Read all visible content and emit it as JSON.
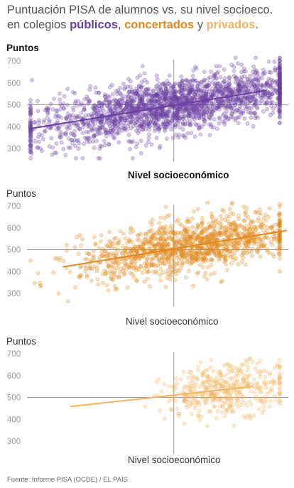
{
  "header": {
    "title_line1": "Puntuación PISA de alumnos vs. su nivel socioeco.",
    "title_line2_prefix": "en colegios ",
    "label_publicos": "públicos",
    "comma": ", ",
    "label_concertados": "concertados",
    "and": " y ",
    "label_privados": "privados",
    "period": "."
  },
  "source": "Fuente: Informe PISA (OCDE) / EL PAÍS",
  "colors": {
    "publicos": "#6b3fa0",
    "concertados": "#e08a1e",
    "privados": "#f2b45f"
  },
  "chart_data": [
    {
      "type": "scatter",
      "series": [
        {
          "name": "públicos",
          "color": "#6b3fa0",
          "n_points": 2200,
          "x_center": 0.0,
          "x_spread": 1.0,
          "noise_sd": 62
        }
      ],
      "trendline": {
        "x": [
          -2.0,
          1.3
        ],
        "y": [
          391,
          566
        ]
      },
      "ylabel": "Puntos",
      "xlabel": "Nivel socioeconómico",
      "yticks": [
        300,
        400,
        500,
        600,
        700
      ],
      "ylim": [
        240,
        720
      ],
      "xlim": [
        -2.05,
        1.6
      ],
      "reference_lines": {
        "x": 0,
        "y": 500
      }
    },
    {
      "type": "scatter",
      "series": [
        {
          "name": "concertados",
          "color": "#e08a1e",
          "n_points": 1300,
          "x_center": 0.2,
          "x_spread": 0.75,
          "noise_sd": 60
        }
      ],
      "trendline": {
        "x": [
          -1.55,
          1.58
        ],
        "y": [
          421,
          588
        ]
      },
      "ylabel": "Puntos",
      "xlabel": "Nivel socioeconómico",
      "yticks": [
        300,
        400,
        500,
        600,
        700
      ],
      "ylim": [
        240,
        720
      ],
      "xlim": [
        -2.05,
        1.6
      ],
      "reference_lines": {
        "x": 0,
        "y": 500
      }
    },
    {
      "type": "scatter",
      "series": [
        {
          "name": "privados",
          "color": "#f2b45f",
          "n_points": 420,
          "x_center": 0.75,
          "x_spread": 0.45,
          "noise_sd": 58
        }
      ],
      "trendline": {
        "x": [
          -1.45,
          1.1
        ],
        "y": [
          458,
          550
        ]
      },
      "ylabel": "Puntos",
      "xlabel": "Nivel socioeconómico",
      "yticks": [
        300,
        400,
        500,
        600,
        700
      ],
      "ylim": [
        240,
        720
      ],
      "xlim": [
        -2.05,
        1.6
      ],
      "reference_lines": {
        "x": 0,
        "y": 500
      }
    }
  ]
}
